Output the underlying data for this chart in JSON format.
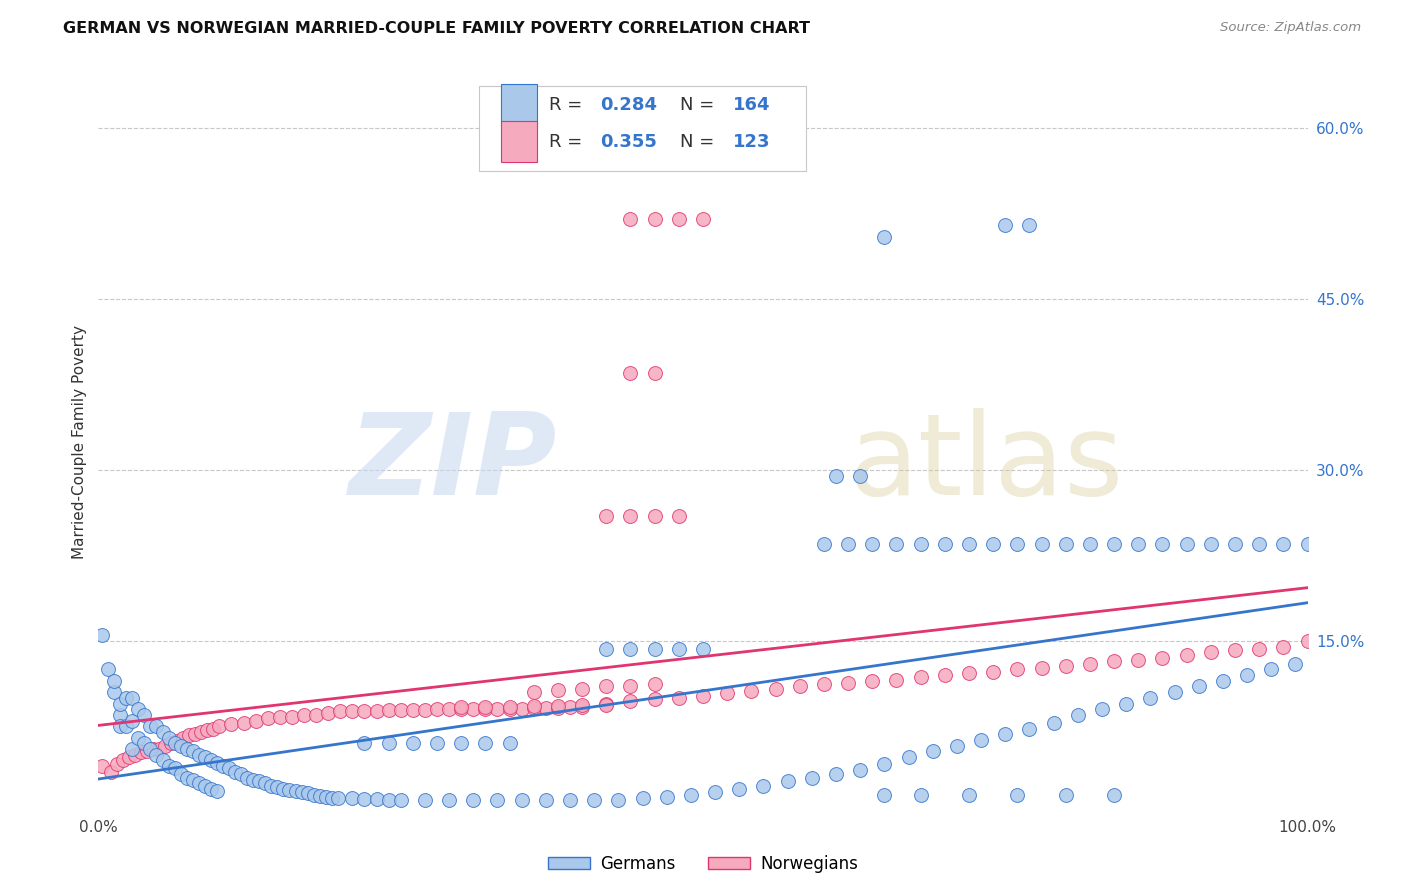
{
  "title": "GERMAN VS NORWEGIAN MARRIED-COUPLE FAMILY POVERTY CORRELATION CHART",
  "source": "Source: ZipAtlas.com",
  "ylabel_label": "Married-Couple Family Poverty",
  "ytick_values": [
    0.15,
    0.3,
    0.45,
    0.6
  ],
  "ytick_labels": [
    "15.0%",
    "30.0%",
    "45.0%",
    "60.0%"
  ],
  "xlim": [
    0.0,
    1.0
  ],
  "ylim": [
    0.0,
    0.65
  ],
  "legend_german_R": "0.284",
  "legend_german_N": "164",
  "legend_norwegian_R": "0.355",
  "legend_norwegian_N": "123",
  "german_color": "#aac8ea",
  "german_edge_color": "#3575cc",
  "german_line_color": "#3575cc",
  "norwegian_color": "#f5aabe",
  "norwegian_edge_color": "#e03570",
  "norwegian_line_color": "#e03570",
  "background_color": "#ffffff",
  "grid_color": "#c8c8c8",
  "title_color": "#111111",
  "source_color": "#888888",
  "legend_R_N_color": "#3575cc",
  "bottom_legend_label1": "Germans",
  "bottom_legend_label2": "Norwegians",
  "german_x": [
    0.003,
    0.008,
    0.013,
    0.018,
    0.013,
    0.018,
    0.018,
    0.023,
    0.023,
    0.028,
    0.028,
    0.028,
    0.033,
    0.033,
    0.038,
    0.038,
    0.043,
    0.043,
    0.048,
    0.048,
    0.053,
    0.053,
    0.058,
    0.058,
    0.063,
    0.063,
    0.068,
    0.068,
    0.073,
    0.073,
    0.078,
    0.078,
    0.083,
    0.083,
    0.088,
    0.088,
    0.093,
    0.093,
    0.098,
    0.098,
    0.103,
    0.108,
    0.113,
    0.118,
    0.123,
    0.128,
    0.133,
    0.138,
    0.143,
    0.148,
    0.153,
    0.158,
    0.163,
    0.168,
    0.173,
    0.178,
    0.183,
    0.188,
    0.193,
    0.198,
    0.21,
    0.22,
    0.23,
    0.24,
    0.25,
    0.27,
    0.29,
    0.31,
    0.33,
    0.35,
    0.37,
    0.39,
    0.41,
    0.43,
    0.45,
    0.47,
    0.49,
    0.51,
    0.53,
    0.55,
    0.57,
    0.59,
    0.61,
    0.63,
    0.65,
    0.67,
    0.69,
    0.71,
    0.73,
    0.75,
    0.77,
    0.79,
    0.81,
    0.83,
    0.85,
    0.87,
    0.89,
    0.91,
    0.93,
    0.95,
    0.97,
    0.99,
    0.61,
    0.63,
    0.65,
    0.75,
    0.77,
    0.6,
    0.62,
    0.64,
    0.66,
    0.68,
    0.7,
    0.72,
    0.74,
    0.76,
    0.78,
    0.8,
    0.82,
    0.84,
    0.86,
    0.88,
    0.9,
    0.92,
    0.94,
    0.96,
    0.98,
    1.0,
    0.42,
    0.44,
    0.46,
    0.48,
    0.5,
    0.22,
    0.24,
    0.26,
    0.28,
    0.3,
    0.32,
    0.34,
    0.65,
    0.68,
    0.72,
    0.76,
    0.8,
    0.84
  ],
  "german_y": [
    0.155,
    0.125,
    0.105,
    0.085,
    0.115,
    0.095,
    0.075,
    0.1,
    0.075,
    0.1,
    0.08,
    0.055,
    0.09,
    0.065,
    0.085,
    0.06,
    0.075,
    0.055,
    0.075,
    0.05,
    0.07,
    0.045,
    0.065,
    0.04,
    0.06,
    0.038,
    0.058,
    0.033,
    0.055,
    0.03,
    0.053,
    0.028,
    0.05,
    0.025,
    0.048,
    0.023,
    0.045,
    0.02,
    0.043,
    0.018,
    0.04,
    0.038,
    0.035,
    0.033,
    0.03,
    0.028,
    0.027,
    0.025,
    0.023,
    0.022,
    0.02,
    0.019,
    0.018,
    0.017,
    0.016,
    0.015,
    0.014,
    0.013,
    0.012,
    0.012,
    0.012,
    0.011,
    0.011,
    0.01,
    0.01,
    0.01,
    0.01,
    0.01,
    0.01,
    0.01,
    0.01,
    0.01,
    0.01,
    0.01,
    0.012,
    0.013,
    0.015,
    0.017,
    0.02,
    0.023,
    0.027,
    0.03,
    0.033,
    0.037,
    0.042,
    0.048,
    0.053,
    0.058,
    0.063,
    0.068,
    0.073,
    0.078,
    0.085,
    0.09,
    0.095,
    0.1,
    0.105,
    0.11,
    0.115,
    0.12,
    0.125,
    0.13,
    0.295,
    0.295,
    0.505,
    0.515,
    0.515,
    0.235,
    0.235,
    0.235,
    0.235,
    0.235,
    0.235,
    0.235,
    0.235,
    0.235,
    0.235,
    0.235,
    0.235,
    0.235,
    0.235,
    0.235,
    0.235,
    0.235,
    0.235,
    0.235,
    0.235,
    0.235,
    0.143,
    0.143,
    0.143,
    0.143,
    0.143,
    0.06,
    0.06,
    0.06,
    0.06,
    0.06,
    0.06,
    0.06,
    0.015,
    0.015,
    0.015,
    0.015,
    0.015,
    0.015
  ],
  "norwegian_x": [
    0.003,
    0.01,
    0.015,
    0.02,
    0.025,
    0.03,
    0.035,
    0.04,
    0.045,
    0.05,
    0.055,
    0.06,
    0.065,
    0.07,
    0.075,
    0.08,
    0.085,
    0.09,
    0.095,
    0.1,
    0.11,
    0.12,
    0.13,
    0.14,
    0.15,
    0.16,
    0.17,
    0.18,
    0.19,
    0.2,
    0.21,
    0.22,
    0.23,
    0.24,
    0.25,
    0.26,
    0.27,
    0.28,
    0.29,
    0.3,
    0.31,
    0.32,
    0.33,
    0.34,
    0.35,
    0.36,
    0.37,
    0.38,
    0.39,
    0.4,
    0.42,
    0.44,
    0.46,
    0.48,
    0.5,
    0.52,
    0.54,
    0.56,
    0.58,
    0.6,
    0.62,
    0.64,
    0.66,
    0.68,
    0.7,
    0.72,
    0.74,
    0.76,
    0.78,
    0.8,
    0.82,
    0.84,
    0.86,
    0.88,
    0.9,
    0.92,
    0.94,
    0.96,
    0.98,
    1.0,
    0.36,
    0.38,
    0.4,
    0.42,
    0.44,
    0.46,
    0.3,
    0.32,
    0.34,
    0.36,
    0.38,
    0.4,
    0.42,
    0.42,
    0.44,
    0.46,
    0.48,
    0.44,
    0.46,
    0.48,
    0.5,
    0.44,
    0.46
  ],
  "norwegian_y": [
    0.04,
    0.035,
    0.042,
    0.045,
    0.048,
    0.05,
    0.052,
    0.053,
    0.055,
    0.055,
    0.058,
    0.06,
    0.062,
    0.065,
    0.067,
    0.068,
    0.07,
    0.072,
    0.073,
    0.075,
    0.077,
    0.078,
    0.08,
    0.082,
    0.083,
    0.083,
    0.085,
    0.085,
    0.087,
    0.088,
    0.088,
    0.088,
    0.088,
    0.089,
    0.089,
    0.089,
    0.089,
    0.09,
    0.09,
    0.09,
    0.09,
    0.09,
    0.09,
    0.09,
    0.09,
    0.091,
    0.091,
    0.091,
    0.092,
    0.092,
    0.095,
    0.097,
    0.099,
    0.1,
    0.102,
    0.104,
    0.106,
    0.108,
    0.11,
    0.112,
    0.113,
    0.115,
    0.116,
    0.118,
    0.12,
    0.122,
    0.123,
    0.125,
    0.126,
    0.128,
    0.13,
    0.132,
    0.133,
    0.135,
    0.138,
    0.14,
    0.142,
    0.143,
    0.145,
    0.15,
    0.105,
    0.107,
    0.108,
    0.11,
    0.11,
    0.112,
    0.092,
    0.092,
    0.092,
    0.093,
    0.093,
    0.094,
    0.094,
    0.26,
    0.26,
    0.26,
    0.26,
    0.52,
    0.52,
    0.52,
    0.52,
    0.385,
    0.385
  ]
}
